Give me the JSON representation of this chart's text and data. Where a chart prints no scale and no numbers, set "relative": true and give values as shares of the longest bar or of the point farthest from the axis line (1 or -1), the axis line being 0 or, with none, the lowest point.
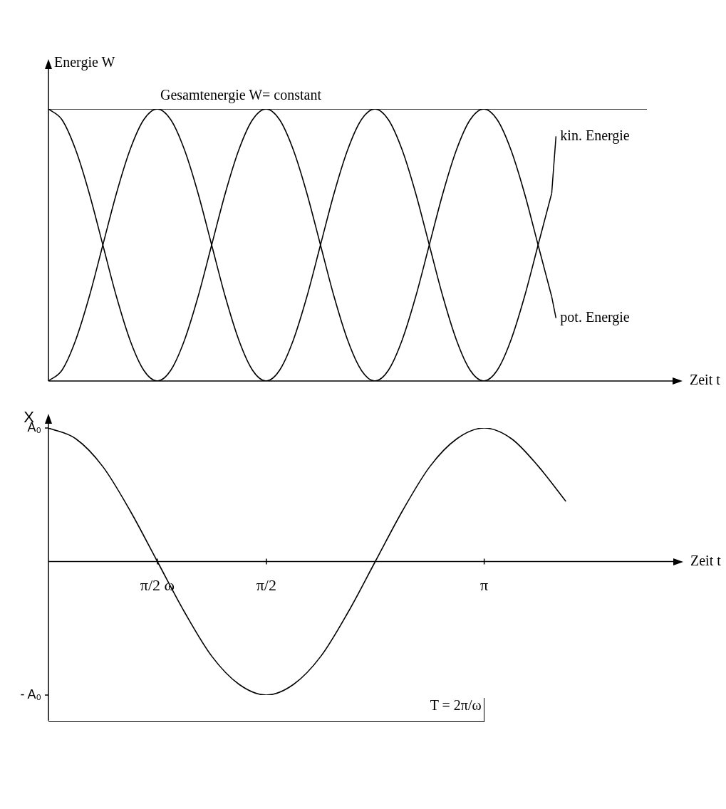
{
  "chart_data": [
    {
      "type": "line",
      "relative": true,
      "xlabel": "Zeit t",
      "ylabel": "Energie W",
      "categories": [
        null,
        null,
        null,
        null,
        null,
        null,
        null,
        null,
        null,
        null,
        null,
        null,
        null,
        null,
        null,
        null,
        null,
        null,
        null,
        null,
        null,
        null,
        null,
        null,
        null,
        null,
        null,
        null,
        null,
        null,
        null,
        null,
        null,
        null,
        null,
        null,
        null,
        null,
        null,
        null,
        null,
        null,
        null,
        null,
        null
      ],
      "series": [
        {
          "name": "Gesamtenergie W= constant",
          "color": "#000000",
          "values": [
            1,
            1,
            1,
            1,
            1,
            1,
            1,
            1,
            1,
            1,
            1,
            1,
            1,
            1,
            1,
            1,
            1,
            1,
            1,
            1,
            1,
            1,
            1,
            1,
            1,
            1,
            1,
            1,
            1,
            1,
            1,
            1,
            1,
            1,
            1,
            1,
            1,
            1,
            1,
            1,
            1,
            1,
            1,
            1,
            1
          ]
        },
        {
          "name": "kin. Energie",
          "color": "#000000",
          "values": [
            0,
            0.04,
            0.15,
            0.31,
            0.5,
            0.69,
            0.85,
            0.96,
            1,
            0.96,
            0.85,
            0.69,
            0.5,
            0.31,
            0.15,
            0.04,
            0,
            0.04,
            0.15,
            0.31,
            0.5,
            0.69,
            0.85,
            0.96,
            1,
            0.96,
            0.85,
            0.69,
            0.5,
            0.31,
            0.15,
            0.04,
            0,
            0.04,
            0.15,
            0.31,
            0.5,
            0.69,
            null,
            null,
            null,
            null,
            null,
            null,
            null
          ]
        },
        {
          "name": "pot. Energie",
          "color": "#000000",
          "values": [
            1,
            0.96,
            0.85,
            0.69,
            0.5,
            0.31,
            0.15,
            0.04,
            0,
            0.04,
            0.15,
            0.31,
            0.5,
            0.69,
            0.85,
            0.96,
            1,
            0.96,
            0.85,
            0.69,
            0.5,
            0.31,
            0.15,
            0.04,
            0,
            0.04,
            0.15,
            0.31,
            0.5,
            0.69,
            0.85,
            0.96,
            1,
            0.96,
            0.85,
            0.69,
            0.5,
            0.31,
            null,
            null,
            null,
            null,
            null,
            null,
            null
          ]
        }
      ]
    },
    {
      "type": "line",
      "relative": true,
      "xlabel": "Zeit t",
      "ylabel": "X",
      "categories": [
        null,
        null,
        null,
        null,
        "π/2 ω",
        null,
        null,
        null,
        "π/2",
        null,
        null,
        null,
        null,
        null,
        null,
        null,
        "π",
        null,
        null,
        null,
        null,
        null,
        null
      ],
      "annotations": [
        "A₀",
        "- A₀",
        "T = 2π/ω"
      ],
      "series": [
        {
          "color": "#000000",
          "values": [
            1,
            0.92,
            0.71,
            0.38,
            0,
            -0.38,
            -0.71,
            -0.92,
            -1,
            -0.92,
            -0.71,
            -0.38,
            0,
            0.38,
            0.71,
            0.92,
            1,
            0.92,
            0.71,
            0.45,
            null,
            null,
            null
          ]
        }
      ]
    }
  ]
}
